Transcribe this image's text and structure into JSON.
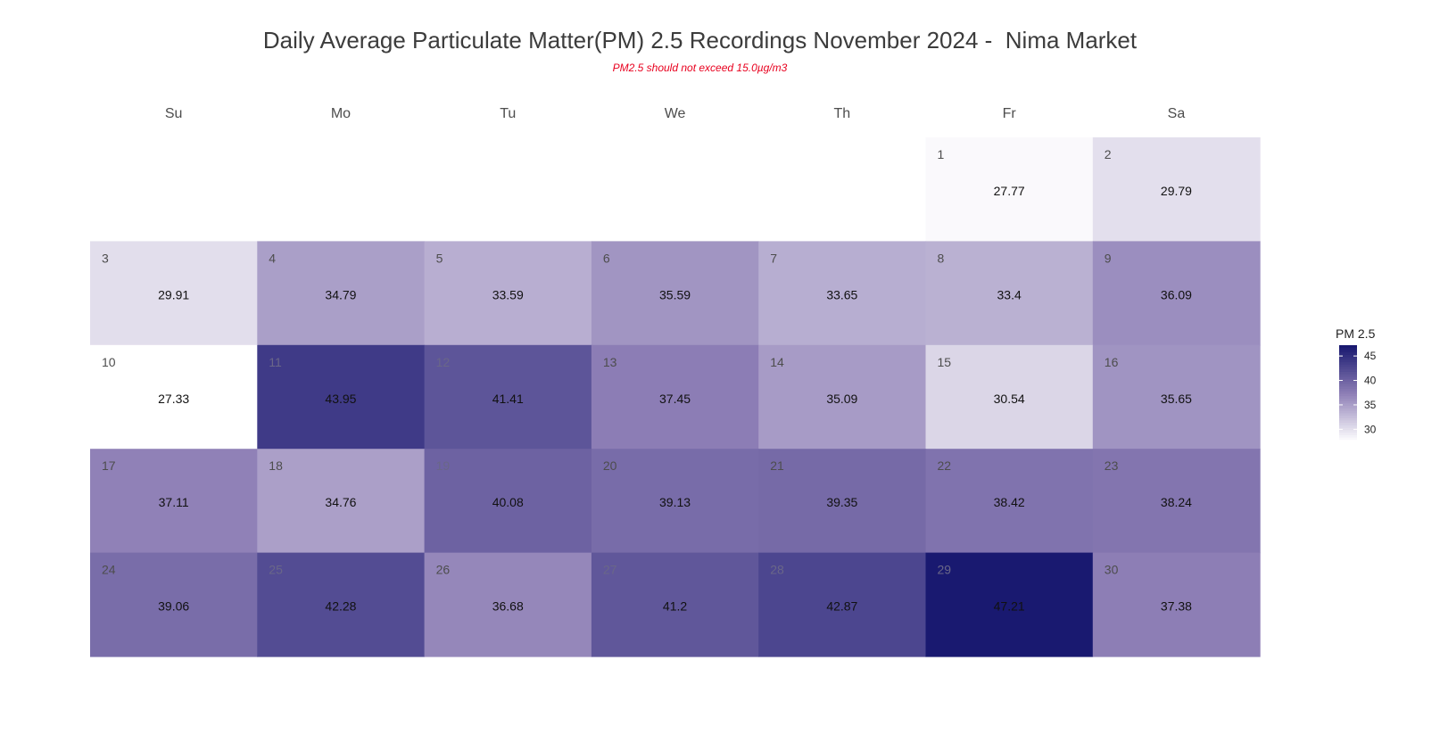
{
  "chart_data": {
    "type": "heatmap",
    "title": "Daily Average Particulate Matter(PM) 2.5 Recordings November 2024 -  Nima Market",
    "subtitle": "PM2.5 should not exceed 15.0µg/m3",
    "weekdays": [
      "Su",
      "Mo",
      "Tu",
      "We",
      "Th",
      "Fr",
      "Sa"
    ],
    "first_weekday_index": 5,
    "days": [
      1,
      2,
      3,
      4,
      5,
      6,
      7,
      8,
      9,
      10,
      11,
      12,
      13,
      14,
      15,
      16,
      17,
      18,
      19,
      20,
      21,
      22,
      23,
      24,
      25,
      26,
      27,
      28,
      29,
      30
    ],
    "values": [
      "27.77",
      "29.79",
      "29.91",
      "34.79",
      "33.59",
      "35.59",
      "33.65",
      "33.4",
      "36.09",
      "27.33",
      "43.95",
      "41.41",
      "37.45",
      "35.09",
      "30.54",
      "35.65",
      "37.11",
      "34.76",
      "40.08",
      "39.13",
      "39.35",
      "38.42",
      "38.24",
      "39.06",
      "42.28",
      "36.68",
      "41.2",
      "42.87",
      "47.21",
      "37.38"
    ],
    "color_scale": {
      "low_color": "#ffffff",
      "mid_color": "#8e7fb6",
      "high_color": "#191970",
      "min": 27.33,
      "max": 47.21
    },
    "legend": {
      "title": "PM 2.5",
      "ticks": [
        30,
        35,
        40,
        45
      ],
      "placement": "right"
    }
  }
}
